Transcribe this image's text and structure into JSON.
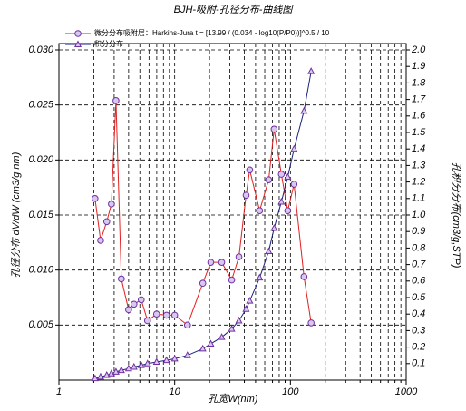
{
  "chart_data": {
    "type": "line",
    "title": "BJH-吸附-孔径分布-曲线图",
    "xlabel": "孔宽W(nm)",
    "ylabel": "孔径分布 dV/dW (cm3/g nm)",
    "y2label": "孔积分分布(cm3/g,STP)",
    "xscale": "log",
    "xlim": [
      1,
      1000
    ],
    "xticks": [
      1,
      10,
      100,
      1000
    ],
    "xminorticks": [
      2,
      3,
      4,
      5,
      6,
      7,
      8,
      9,
      20,
      30,
      40,
      50,
      60,
      70,
      80,
      90,
      200,
      300,
      400,
      500,
      600,
      700,
      800,
      900
    ],
    "ylim": [
      0,
      0.03
    ],
    "yticks": [
      0.005,
      {
        "value": 0.01,
        "label": "0.010"
      },
      0.015,
      {
        "value": 0.02,
        "label": "0.020"
      },
      0.025,
      {
        "value": 0.03,
        "label": "0.030"
      }
    ],
    "y2lim": [
      0,
      2
    ],
    "y2ticks": [
      0.1,
      0.2,
      0.3,
      0.4,
      0.5,
      0.6,
      0.7,
      0.8,
      0.9,
      {
        "value": 1,
        "label": "1.0"
      },
      1.1,
      1.2,
      1.3,
      1.4,
      1.5,
      1.6,
      1.7,
      1.8,
      1.9,
      {
        "value": 2,
        "label": "2.0"
      }
    ],
    "grid": true,
    "legend": "top-left",
    "x": [
      2.05,
      2.29,
      2.59,
      2.84,
      3.11,
      3.46,
      4.0,
      4.45,
      5.14,
      5.83,
      6.98,
      8.5,
      10,
      12.9,
      17.5,
      20.5,
      25.5,
      31.1,
      35.9,
      41.4,
      44.5,
      54.2,
      64.9,
      72.3,
      83.5,
      94.8,
      107.5,
      131,
      151
    ],
    "series": [
      {
        "name": "微分分布吸附层：Harkins-Jura  t = [13.99 / (0.034 - log10(P/P0))]^0.5 / 10",
        "color": "#e02020",
        "marker": "circle",
        "marker_color": "#7030a0",
        "values": [
          0.0165,
          0.0127,
          0.0144,
          0.016,
          0.0254,
          0.0092,
          0.0064,
          0.0069,
          0.0073,
          0.0054,
          0.006,
          0.0059,
          0.0059,
          0.005,
          0.0088,
          0.0107,
          0.0107,
          0.0091,
          0.0112,
          0.0168,
          0.0191,
          0.0154,
          0.0182,
          0.0228,
          0.0187,
          0.0154,
          0.0178,
          0.0094,
          0.0052
        ]
      },
      {
        "name": "积分分布",
        "color": "#1a237e",
        "marker": "triangle",
        "marker_color": "#7030a0",
        "axis": "y2",
        "values": [
          0.01,
          0.02,
          0.03,
          0.04,
          0.05,
          0.06,
          0.07,
          0.08,
          0.09,
          0.1,
          0.11,
          0.12,
          0.13,
          0.15,
          0.19,
          0.22,
          0.26,
          0.31,
          0.36,
          0.43,
          0.48,
          0.62,
          0.78,
          0.92,
          1.08,
          1.23,
          1.4,
          1.63,
          1.87
        ]
      }
    ]
  }
}
